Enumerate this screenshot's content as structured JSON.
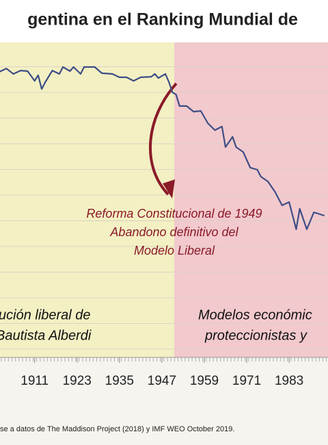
{
  "chart_data": {
    "type": "line",
    "title": "gentina en el Ranking Mundial de",
    "x": [
      1901,
      1903,
      1905,
      1907,
      1909,
      1911,
      1912,
      1913,
      1914,
      1916,
      1918,
      1919,
      1921,
      1922,
      1924,
      1925,
      1928,
      1930,
      1933,
      1935,
      1937,
      1939,
      1941,
      1944,
      1945,
      1946,
      1948,
      1949,
      1950,
      1951,
      1952,
      1954,
      1956,
      1958,
      1960,
      1962,
      1964,
      1965,
      1967,
      1968,
      1970,
      1972,
      1974,
      1975,
      1977,
      1979,
      1981,
      1983,
      1985,
      1986,
      1987,
      1988,
      1990,
      1993
    ],
    "series": [
      {
        "color": "#3d4d86",
        "values": [
          1.2,
          1.07,
          1.28,
          1.15,
          1.17,
          1.55,
          1.33,
          1.87,
          1.6,
          1.15,
          1.28,
          1.01,
          1.17,
          1.01,
          1.28,
          1.01,
          1.01,
          1.25,
          1.28,
          1.41,
          1.41,
          1.55,
          1.41,
          1.39,
          1.28,
          1.44,
          1.28,
          1.6,
          2,
          2.08,
          2.53,
          2.53,
          2.75,
          2.72,
          3.2,
          3.47,
          3.33,
          4.13,
          3.73,
          4.13,
          4.32,
          4.93,
          5.01,
          5.28,
          5.47,
          5.87,
          6.4,
          6.27,
          7.33,
          6.53,
          6.93,
          7.33,
          6.67,
          6.8
        ]
      }
    ],
    "xlim": [
      1901.2,
      1994
    ],
    "xticks": [
      1911,
      1923,
      1935,
      1947,
      1959,
      1971,
      1983
    ],
    "ylim": [
      0,
      12.3
    ],
    "y_inverted": true,
    "grid_lines": [
      1,
      2,
      3,
      4,
      5,
      6,
      7,
      8,
      9,
      10,
      11,
      12
    ],
    "annotations": [
      "Reforma Constitucional de 1949",
      "Abandono definitivo del",
      "Modelo Liberal"
    ],
    "region_labels": [
      [
        "ución liberal de",
        "Bautista Alberdi"
      ],
      [
        "Modelos económic",
        "proteccionistas y"
      ]
    ],
    "source": "se a datos de The Maddison Project (2018) y IMF WEO October 2019."
  }
}
